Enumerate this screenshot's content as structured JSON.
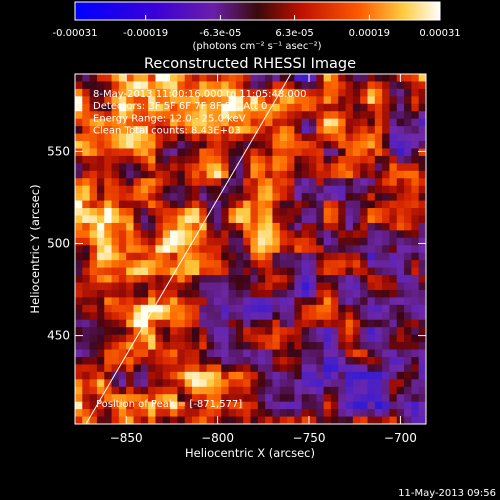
{
  "colorbar": {
    "ticks": [
      "-0.00031",
      "-0.00019",
      "-6.3e-05",
      "6.3e-05",
      "0.00019",
      "0.00031"
    ],
    "tick_values": [
      -0.00031,
      -0.00019,
      -6.3e-05,
      6.3e-05,
      0.00019,
      0.00031
    ],
    "range": [
      -0.00031,
      0.00031
    ],
    "units": "(photons cm⁻² s⁻¹ asec⁻²)"
  },
  "chart_data": {
    "type": "heatmap",
    "title": "Reconstructed RHESSI Image",
    "xlabel": "Heliocentric X (arcsec)",
    "ylabel": "Heliocentric Y (arcsec)",
    "xlim": [
      -878,
      -686
    ],
    "ylim": [
      402,
      592
    ],
    "xticks": [
      -850,
      -800,
      -750,
      -700
    ],
    "xtick_labels": [
      "−850",
      "−800",
      "−750",
      "−700"
    ],
    "yticks": [
      450,
      500,
      550
    ],
    "ytick_labels": [
      "450",
      "500",
      "550"
    ],
    "limb_line": [
      [
        -872,
        402
      ],
      [
        -760,
        592
      ]
    ],
    "annotations": [
      "8-May-2013 11:00:16.000 to 11:05:48.000",
      "Detectors: 3F 5F 6F 7F 8F 9F, Att 0",
      "Energy Range: 12.0 - 25.0 keV",
      "Clean    Total counts: 8.43E+03"
    ],
    "peak_label": "Position of Peak = [-871,577]",
    "peak": [
      -871,
      577
    ]
  },
  "footer": {
    "timestamp": "11-May-2013 09:56"
  },
  "colors": {
    "background": "#000000",
    "foreground": "#ffffff"
  }
}
